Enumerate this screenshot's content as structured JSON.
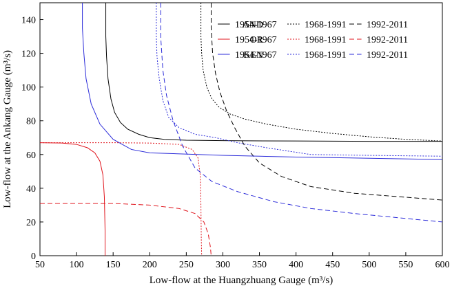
{
  "chart_data": {
    "type": "line",
    "xlabel": "Low-flow at the Huangzhuang Gauge (m³/s)",
    "ylabel": "Low-flow at the Ankang Gauge (m³/s)",
    "xlim": [
      50,
      600
    ],
    "ylim": [
      0,
      150
    ],
    "xticks": [
      50,
      100,
      150,
      200,
      250,
      300,
      350,
      400,
      450,
      500,
      550,
      600
    ],
    "yticks": [
      0,
      20,
      40,
      60,
      80,
      100,
      120,
      140
    ],
    "grid": false,
    "legend_position": "top-right",
    "legend": {
      "groups": [
        "AND",
        "OR",
        "KEN"
      ],
      "periods": [
        "1954-1967",
        "1968-1991",
        "1992-2011"
      ],
      "styles": [
        "solid",
        "dotted",
        "dashed"
      ]
    },
    "colors": {
      "AND": "#000000",
      "OR": "#e0141c",
      "KEN": "#2b2bd9"
    },
    "series": [
      {
        "group": "AND",
        "period": "1954-1967",
        "style": "solid",
        "points": [
          [
            140,
            150
          ],
          [
            140,
            130
          ],
          [
            141,
            118
          ],
          [
            143,
            105
          ],
          [
            147,
            93
          ],
          [
            152,
            85
          ],
          [
            160,
            79
          ],
          [
            170,
            75
          ],
          [
            185,
            72
          ],
          [
            200,
            70
          ],
          [
            220,
            69
          ],
          [
            250,
            68.5
          ],
          [
            300,
            68.2
          ],
          [
            400,
            68
          ],
          [
            500,
            67.8
          ],
          [
            600,
            67.8
          ]
        ]
      },
      {
        "group": "AND",
        "period": "1968-1991",
        "style": "dotted",
        "points": [
          [
            270,
            150
          ],
          [
            270,
            130
          ],
          [
            271,
            120
          ],
          [
            273,
            110
          ],
          [
            278,
            100
          ],
          [
            285,
            93
          ],
          [
            295,
            88
          ],
          [
            310,
            84
          ],
          [
            330,
            81
          ],
          [
            360,
            78
          ],
          [
            400,
            75
          ],
          [
            450,
            72.5
          ],
          [
            500,
            70.5
          ],
          [
            550,
            69
          ],
          [
            600,
            68
          ]
        ]
      },
      {
        "group": "AND",
        "period": "1992-2011",
        "style": "dashed",
        "points": [
          [
            284,
            150
          ],
          [
            284,
            135
          ],
          [
            286,
            120
          ],
          [
            290,
            108
          ],
          [
            296,
            97
          ],
          [
            305,
            86
          ],
          [
            316,
            76
          ],
          [
            330,
            65
          ],
          [
            350,
            55
          ],
          [
            380,
            47
          ],
          [
            420,
            41
          ],
          [
            480,
            37
          ],
          [
            540,
            35
          ],
          [
            600,
            33
          ]
        ]
      },
      {
        "group": "OR",
        "period": "1954-1967",
        "style": "solid",
        "points": [
          [
            50,
            67
          ],
          [
            80,
            66.8
          ],
          [
            100,
            66
          ],
          [
            115,
            64
          ],
          [
            125,
            61
          ],
          [
            132,
            56
          ],
          [
            136,
            48
          ],
          [
            138,
            35
          ],
          [
            139,
            15
          ],
          [
            139,
            0
          ]
        ]
      },
      {
        "group": "OR",
        "period": "1968-1991",
        "style": "dotted",
        "points": [
          [
            50,
            67
          ],
          [
            150,
            67
          ],
          [
            200,
            66.8
          ],
          [
            240,
            66
          ],
          [
            258,
            63
          ],
          [
            266,
            58
          ],
          [
            269,
            48
          ],
          [
            270,
            30
          ],
          [
            270.5,
            10
          ],
          [
            271,
            0
          ]
        ]
      },
      {
        "group": "OR",
        "period": "1992-2011",
        "style": "dashed",
        "points": [
          [
            50,
            31
          ],
          [
            150,
            31
          ],
          [
            200,
            30
          ],
          [
            240,
            28
          ],
          [
            262,
            25
          ],
          [
            274,
            20
          ],
          [
            280,
            13
          ],
          [
            283,
            5
          ],
          [
            284,
            0
          ]
        ]
      },
      {
        "group": "KEN",
        "period": "1954-1967",
        "style": "solid",
        "points": [
          [
            108,
            150
          ],
          [
            108,
            135
          ],
          [
            110,
            120
          ],
          [
            113,
            105
          ],
          [
            120,
            90
          ],
          [
            132,
            78
          ],
          [
            150,
            69
          ],
          [
            175,
            63
          ],
          [
            200,
            61
          ],
          [
            300,
            59.5
          ],
          [
            400,
            58.5
          ],
          [
            500,
            57.8
          ],
          [
            600,
            57
          ]
        ]
      },
      {
        "group": "KEN",
        "period": "1968-1991",
        "style": "dotted",
        "points": [
          [
            209,
            150
          ],
          [
            209,
            130
          ],
          [
            210,
            118
          ],
          [
            213,
            105
          ],
          [
            218,
            92
          ],
          [
            226,
            82
          ],
          [
            240,
            76
          ],
          [
            262,
            72
          ],
          [
            290,
            70
          ],
          [
            320,
            67
          ],
          [
            360,
            64
          ],
          [
            420,
            60
          ],
          [
            500,
            59.5
          ],
          [
            600,
            59
          ]
        ]
      },
      {
        "group": "KEN",
        "period": "1992-2011",
        "style": "dashed",
        "points": [
          [
            215,
            150
          ],
          [
            215,
            130
          ],
          [
            218,
            110
          ],
          [
            223,
            95
          ],
          [
            232,
            80
          ],
          [
            245,
            65
          ],
          [
            262,
            52
          ],
          [
            285,
            44
          ],
          [
            320,
            38
          ],
          [
            370,
            32
          ],
          [
            420,
            28
          ],
          [
            480,
            25
          ],
          [
            540,
            22.5
          ],
          [
            600,
            20
          ]
        ]
      }
    ]
  }
}
